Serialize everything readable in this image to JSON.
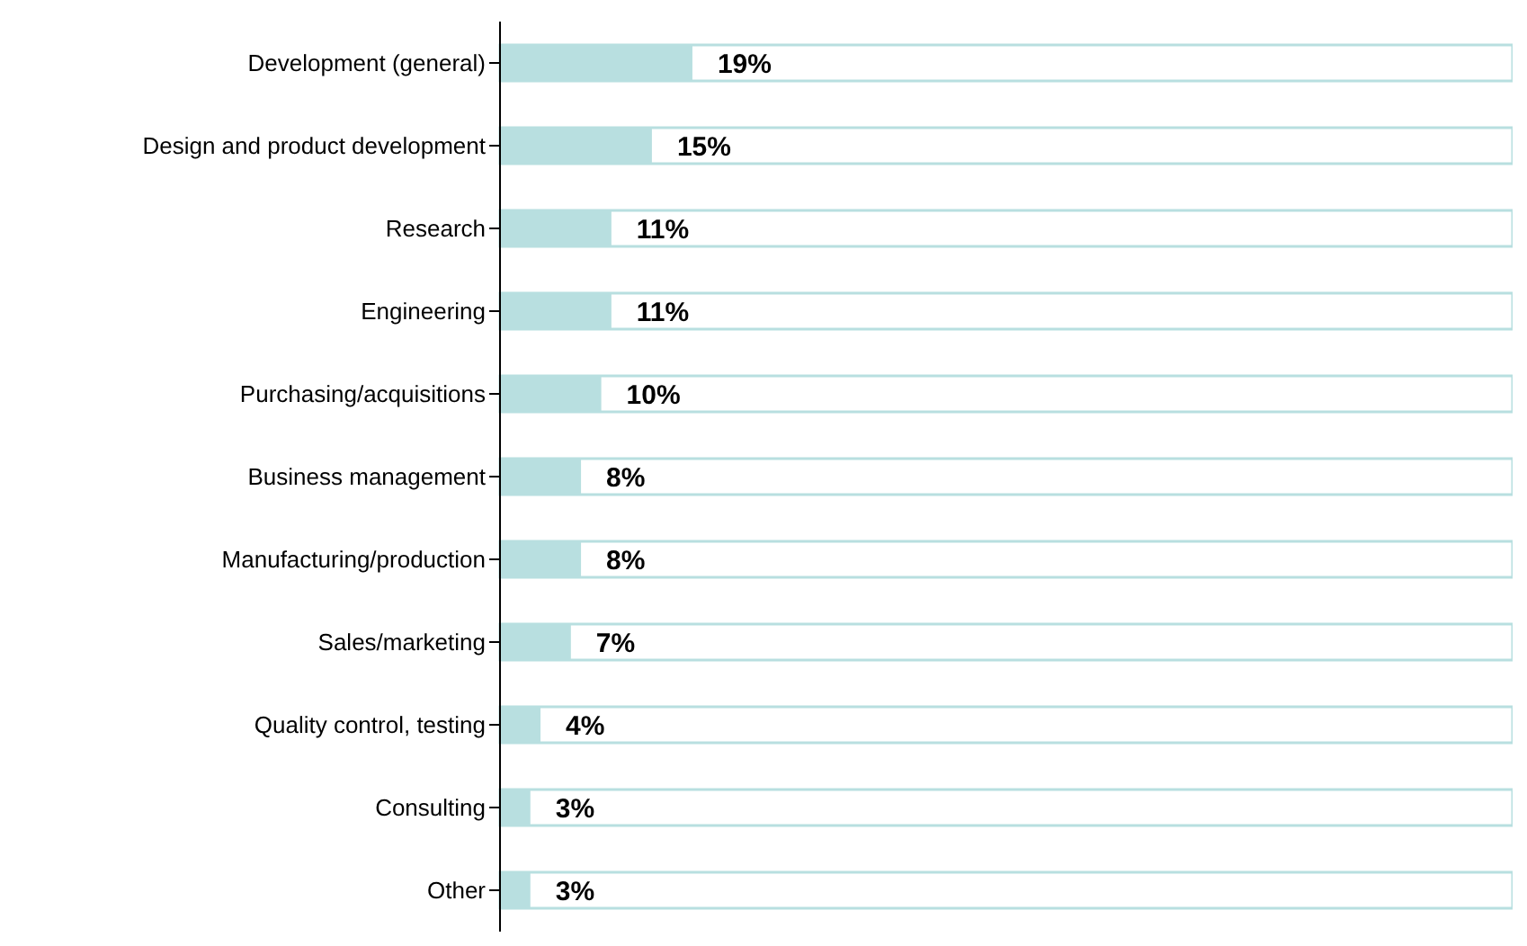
{
  "chart_data": {
    "type": "bar",
    "orientation": "horizontal",
    "categories": [
      "Development (general)",
      "Design and product development",
      "Research",
      "Engineering",
      "Purchasing/acquisitions",
      "Business management",
      "Manufacturing/production",
      "Sales/marketing",
      "Quality control, testing",
      "Consulting",
      "Other"
    ],
    "values": [
      19,
      15,
      11,
      11,
      10,
      8,
      8,
      7,
      4,
      3,
      3
    ],
    "value_labels": [
      "19%",
      "15%",
      "11%",
      "11%",
      "10%",
      "8%",
      "8%",
      "7%",
      "4%",
      "3%",
      "3%"
    ],
    "color": "#b8dfe0",
    "xlim": [
      0,
      100
    ],
    "tick_labels": "y"
  }
}
